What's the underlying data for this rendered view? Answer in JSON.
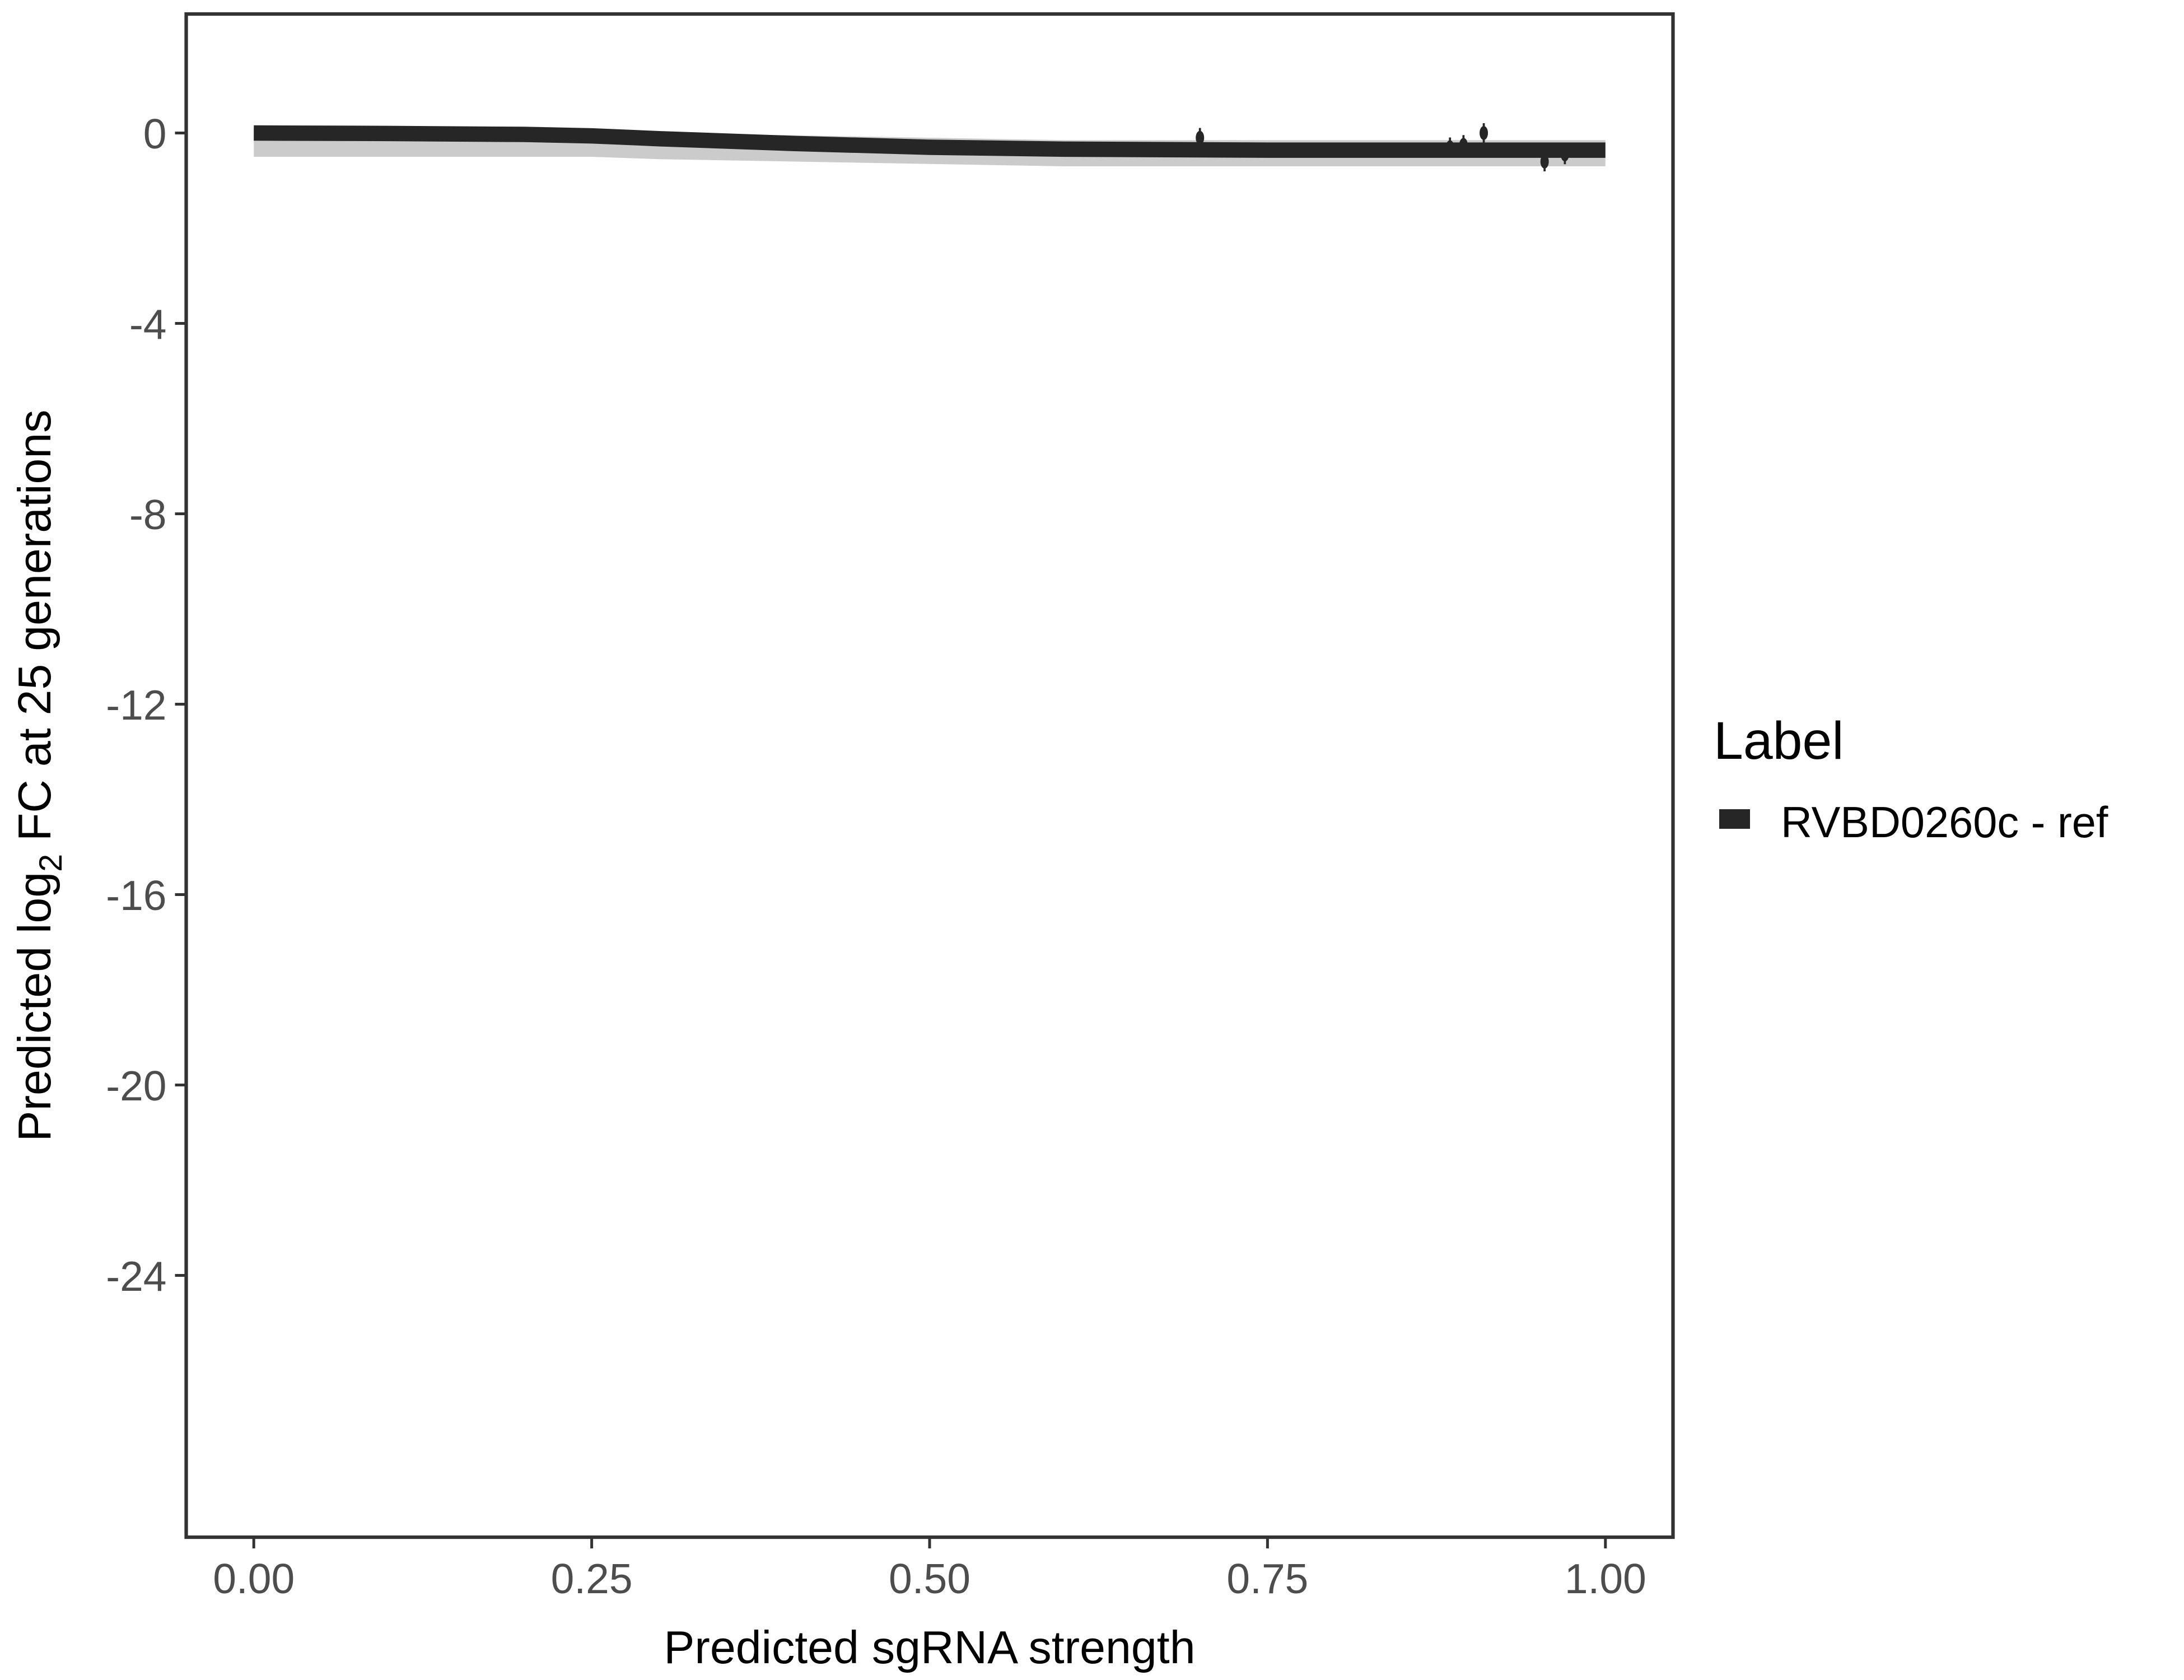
{
  "chart_data": {
    "type": "line",
    "title": "",
    "xlabel": "Predicted sgRNA strength",
    "ylabel_prefix": "Predicted  log",
    "ylabel_sub": "2",
    "ylabel_suffix": " FC at 25 generations",
    "xlim": [
      -0.05,
      1.05
    ],
    "ylim": [
      -29.5,
      2.5
    ],
    "x_ticks": [
      0,
      0.25,
      0.5,
      0.75,
      1
    ],
    "x_tick_labels": [
      "0.00",
      "0.25",
      "0.50",
      "0.75",
      "1.00"
    ],
    "y_ticks": [
      0,
      -4,
      -8,
      -12,
      -16,
      -20,
      -24
    ],
    "y_tick_labels": [
      "0",
      "-4",
      "-8",
      "-12",
      "-16",
      "-20",
      "-24"
    ],
    "grid": false,
    "legend": {
      "title": "Label",
      "position": "right",
      "entries": [
        "RVBD0260c - ref"
      ]
    },
    "series": [
      {
        "name": "RVBD0260c - ref",
        "color": "#262626",
        "x": [
          0,
          0.1,
          0.2,
          0.25,
          0.3,
          0.4,
          0.5,
          0.6,
          0.75,
          0.9,
          1.0
        ],
        "y": [
          0,
          -0.01,
          -0.03,
          -0.06,
          -0.12,
          -0.22,
          -0.3,
          -0.34,
          -0.36,
          -0.36,
          -0.36
        ],
        "band_lower": [
          -0.5,
          -0.5,
          -0.5,
          -0.5,
          -0.55,
          -0.6,
          -0.65,
          -0.7,
          -0.7,
          -0.7,
          -0.7
        ],
        "band_upper": [
          0.1,
          0.1,
          0.1,
          0.05,
          0.0,
          -0.05,
          -0.1,
          -0.15,
          -0.15,
          -0.15,
          -0.15
        ]
      }
    ],
    "points": {
      "x": [
        0.7,
        0.885,
        0.895,
        0.91,
        0.955,
        0.97
      ],
      "y": [
        -0.1,
        -0.3,
        -0.25,
        0.0,
        -0.6,
        -0.45
      ]
    }
  }
}
